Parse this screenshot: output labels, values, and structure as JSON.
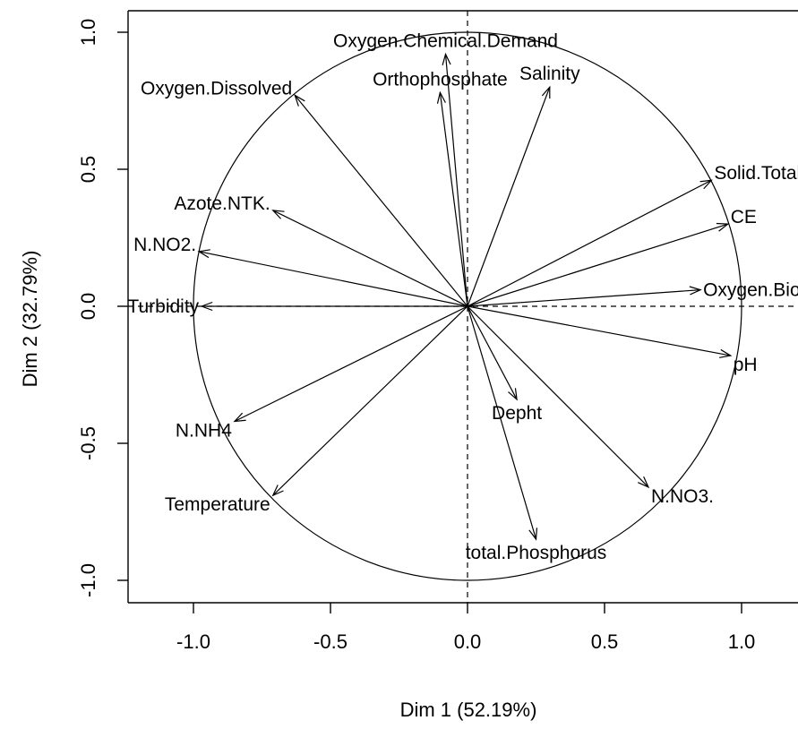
{
  "chart_data": {
    "type": "scatter",
    "subtype": "pca-correlation-circle",
    "xlabel": "Dim 1 (52.19%)",
    "ylabel": "Dim 2 (32.79%)",
    "xlim": [
      -1.2,
      1.2
    ],
    "ylim": [
      -1.07,
      1.07
    ],
    "xticks": [
      "-1.0",
      "-0.5",
      "0.0",
      "0.5",
      "1.0"
    ],
    "yticks": [
      "-1.0",
      "-0.5",
      "0.0",
      "0.5",
      "1.0"
    ],
    "grid": false,
    "reference_lines": "dashed lines at x = 0 and y = 0",
    "variables": [
      {
        "name": "Oxygen.Chemical.Demand",
        "x": -0.08,
        "y": 0.92
      },
      {
        "name": "Salinity",
        "x": 0.3,
        "y": 0.8
      },
      {
        "name": "Oxygen.Dissolved",
        "x": -0.63,
        "y": 0.77
      },
      {
        "name": "Orthophosphate",
        "x": -0.1,
        "y": 0.78
      },
      {
        "name": "Solid.Total.Dissolved",
        "x": 0.89,
        "y": 0.46
      },
      {
        "name": "Azote.NTK.",
        "x": -0.71,
        "y": 0.35
      },
      {
        "name": "CE",
        "x": 0.95,
        "y": 0.3
      },
      {
        "name": "N.NO2.",
        "x": -0.98,
        "y": 0.2
      },
      {
        "name": "Oxygen.Biochemical.Demand",
        "x": 0.85,
        "y": 0.06
      },
      {
        "name": "Turbidity",
        "x": -0.97,
        "y": 0.0
      },
      {
        "name": "pH",
        "x": 0.96,
        "y": -0.18
      },
      {
        "name": "Depht",
        "x": 0.18,
        "y": -0.34
      },
      {
        "name": "N.NH4",
        "x": -0.85,
        "y": -0.42
      },
      {
        "name": "N.NO3.",
        "x": 0.66,
        "y": -0.66
      },
      {
        "name": "Temperature",
        "x": -0.71,
        "y": -0.69
      },
      {
        "name": "total.Phosphorus",
        "x": 0.25,
        "y": -0.85
      }
    ]
  }
}
